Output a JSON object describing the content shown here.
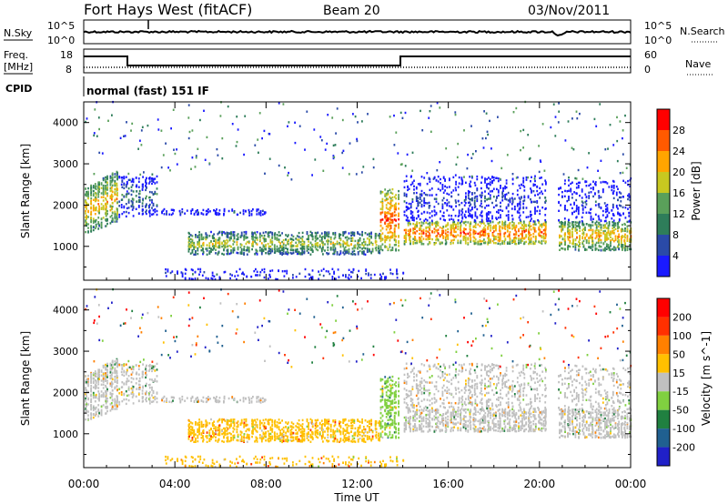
{
  "header": {
    "title": "Fort Hays West (fitACF)",
    "beam": "Beam 20",
    "date": "03/Nov/2011"
  },
  "noise_panel": {
    "left_label": "N.Sky",
    "right_label": "N.Search",
    "left_ticks": [
      "10^5",
      "10^0"
    ],
    "right_ticks": [
      "10^5",
      "10^0"
    ]
  },
  "freq_panel": {
    "left_label_line1": "Freq.",
    "left_label_line2": "[MHz]",
    "left_ticks": [
      "18",
      "8"
    ],
    "right_label": "Nave",
    "right_ticks": [
      "60",
      "0"
    ]
  },
  "cpid": {
    "label": "CPID",
    "value": "normal (fast) 151 IF"
  },
  "chart_data": [
    {
      "type": "heatmap",
      "name": "power",
      "ylabel": "Slant Range [km]",
      "ylim": [
        180,
        4500
      ],
      "yticks": [
        "4000",
        "3000",
        "2000",
        "1000"
      ],
      "colorbar_label": "Power [dB]",
      "colorbar_ticks": [
        "28",
        "24",
        "20",
        "16",
        "12",
        "8",
        "4"
      ],
      "colors": [
        "#1a1aff",
        "#2a4aa8",
        "#2e7d5a",
        "#5aa05a",
        "#c8c820",
        "#ffa500",
        "#ff5a00",
        "#ff0000"
      ],
      "x": [
        "00:00",
        "04:00",
        "08:00",
        "12:00",
        "16:00",
        "20:00",
        "00:00"
      ]
    },
    {
      "type": "heatmap",
      "name": "velocity",
      "ylabel": "Slant Range [km]",
      "ylim": [
        180,
        4500
      ],
      "yticks": [
        "4000",
        "3000",
        "2000",
        "1000"
      ],
      "colorbar_label": "Velocity [m s^-1]",
      "colorbar_ticks": [
        "200",
        "100",
        "50",
        "15",
        "-15",
        "-50",
        "-100",
        "-200"
      ],
      "colors": [
        "#2020c8",
        "#206090",
        "#208040",
        "#80d040",
        "#c0c0c0",
        "#ffc000",
        "#ff8000",
        "#ff3000",
        "#ff0000"
      ],
      "x": [
        "00:00",
        "04:00",
        "08:00",
        "12:00",
        "16:00",
        "20:00",
        "00:00"
      ]
    }
  ],
  "xaxis": {
    "ticks": [
      "00:00",
      "04:00",
      "08:00",
      "12:00",
      "16:00",
      "20:00",
      "00:00"
    ],
    "label": "Time UT"
  }
}
